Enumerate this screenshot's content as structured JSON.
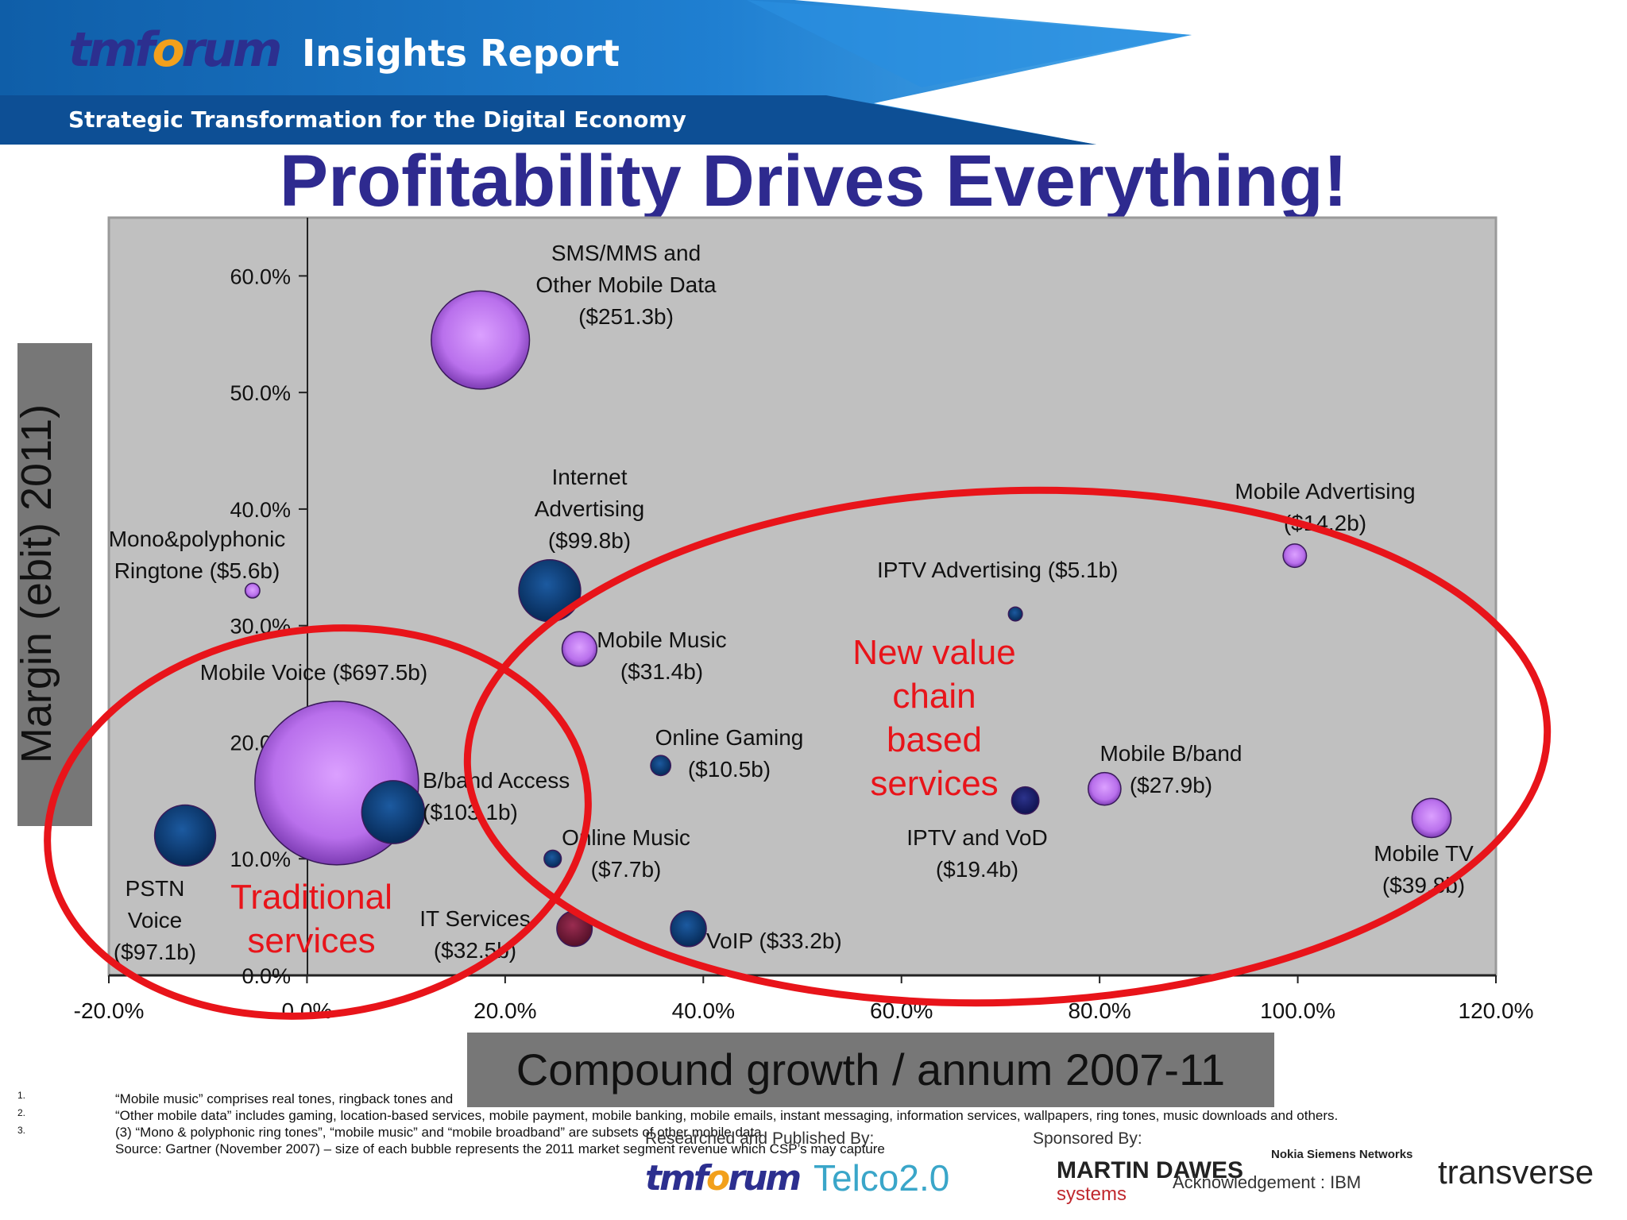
{
  "header": {
    "brand_prefix": "tmf",
    "brand_o": "o",
    "brand_suffix": "rum",
    "report": "Insights Report",
    "tagline": "Strategic Transformation for the Digital Economy"
  },
  "title": "Profitability Drives Everything!",
  "colors": {
    "title": "#2e2a8f",
    "plot_bg": "#c0c0c0",
    "bubble_purple": "#c77df5",
    "bubble_blue": "#0d3f7a",
    "bubble_navy": "#1a1f6e",
    "bubble_maroon": "#7a1f3d",
    "highlight_red": "#e8141a"
  },
  "chart_data": {
    "type": "scatter",
    "subtype": "bubble",
    "xlabel": "Compound growth / annum 2007-11",
    "ylabel": "Margin (ebit) 2011)",
    "xlim": [
      -20,
      120
    ],
    "ylim": [
      0,
      65
    ],
    "x_ticks": [
      "-20.0%",
      "0.0%",
      "20.0%",
      "40.0%",
      "60.0%",
      "80.0%",
      "100.0%",
      "120.0%"
    ],
    "y_ticks": [
      "0.0%",
      "10.0%",
      "20.0%",
      "30.0%",
      "40.0%",
      "50.0%",
      "60.0%"
    ],
    "size_note": "bubble area = 2011 market segment revenue ($b)",
    "points": [
      {
        "name": "SMS/MMS and Other Mobile Data",
        "x": 17.5,
        "y": 54.5,
        "revenue": 251.3,
        "color": "purple",
        "label_lines": [
          "SMS/MMS and",
          "Other Mobile Data",
          "($251.3b)"
        ]
      },
      {
        "name": "Mobile Voice",
        "x": 3,
        "y": 16.5,
        "revenue": 697.5,
        "color": "purple",
        "label_lines": [
          "Mobile Voice ($697.5b)"
        ]
      },
      {
        "name": "B/band Access",
        "x": 8.7,
        "y": 14,
        "revenue": 103.1,
        "color": "blue",
        "label_lines": [
          "B/band Access",
          "($103.1b)"
        ]
      },
      {
        "name": "PSTN Voice",
        "x": -12.3,
        "y": 12,
        "revenue": 97.1,
        "color": "blue",
        "label_lines": [
          "PSTN",
          "Voice",
          "($97.1b)"
        ]
      },
      {
        "name": "Internet Advertising",
        "x": 24.5,
        "y": 33,
        "revenue": 99.8,
        "color": "blue",
        "label_lines": [
          "Internet",
          "Advertising",
          "($99.8b)"
        ]
      },
      {
        "name": "Mono&polyphonic Ringtone",
        "x": -5.5,
        "y": 33,
        "revenue": 5.6,
        "color": "purple",
        "label_lines": [
          "Mono&polyphonic",
          "Ringtone ($5.6b)"
        ]
      },
      {
        "name": "Mobile Music",
        "x": 27.5,
        "y": 28,
        "revenue": 31.4,
        "color": "purple",
        "label_lines": [
          "Mobile Music",
          "($31.4b)"
        ]
      },
      {
        "name": "Online Gaming",
        "x": 35.7,
        "y": 18,
        "revenue": 10.5,
        "color": "blue",
        "label_lines": [
          "Online Gaming",
          "($10.5b)"
        ]
      },
      {
        "name": "Online Music",
        "x": 24.8,
        "y": 10,
        "revenue": 7.7,
        "color": "blue",
        "label_lines": [
          "Online Music",
          "($7.7b)"
        ]
      },
      {
        "name": "IT Services",
        "x": 27,
        "y": 4,
        "revenue": 32.5,
        "color": "maroon",
        "label_lines": [
          "IT Services",
          "($32.5b)"
        ]
      },
      {
        "name": "VoIP",
        "x": 38.5,
        "y": 4,
        "revenue": 33.2,
        "color": "blue",
        "label_lines": [
          "VoIP ($33.2b)"
        ]
      },
      {
        "name": "IPTV Advertising",
        "x": 71.5,
        "y": 31,
        "revenue": 5.1,
        "color": "blue",
        "label_lines": [
          "IPTV Advertising ($5.1b)"
        ]
      },
      {
        "name": "IPTV and VoD",
        "x": 72.5,
        "y": 15,
        "revenue": 19.4,
        "color": "navy",
        "label_lines": [
          "IPTV and VoD",
          "($19.4b)"
        ]
      },
      {
        "name": "Mobile B/band",
        "x": 80.5,
        "y": 16,
        "revenue": 27.9,
        "color": "purple",
        "label_lines": [
          "Mobile B/band",
          "($27.9b)"
        ]
      },
      {
        "name": "Mobile Advertising",
        "x": 99.7,
        "y": 36,
        "revenue": 14.2,
        "color": "purple",
        "label_lines": [
          "Mobile  Advertising",
          "($14.2b)"
        ]
      },
      {
        "name": "Mobile TV",
        "x": 113.5,
        "y": 13.5,
        "revenue": 39.8,
        "color": "purple",
        "label_lines": [
          "Mobile TV",
          "($39.8b)"
        ]
      }
    ],
    "annotations": [
      {
        "text_lines": [
          "Traditional",
          "services"
        ],
        "color": "#e8141a"
      },
      {
        "text_lines": [
          "New value",
          "chain",
          "based",
          "services"
        ],
        "color": "#e8141a"
      }
    ]
  },
  "footnotes": {
    "numbers": [
      "1.",
      "2.",
      "3."
    ],
    "lines": [
      "“Mobile music” comprises real tones, ringback tones and",
      "“Other mobile data” includes gaming, location-based services, mobile payment, mobile banking, mobile emails, instant messaging, information services, wallpapers, ring tones, music downloads and others.",
      "(3) “Mono & polyphonic ring tones”, “mobile music” and “mobile broadband” are subsets of other mobile data",
      "Source: Gartner (November 2007) – size of each bubble represents the 2011 market segment revenue which CSP’s may capture"
    ]
  },
  "credits": {
    "researched": "Researched and Published By:",
    "sponsored": "Sponsored By:",
    "acknowledgement": "Acknowledgement : IBM",
    "logo_telco": "Telco2.0",
    "logo_md_main": "MARTIN DAWES",
    "logo_md_sub": "systems",
    "logo_nsn": "Nokia Siemens Networks",
    "logo_transverse": "transverse"
  }
}
